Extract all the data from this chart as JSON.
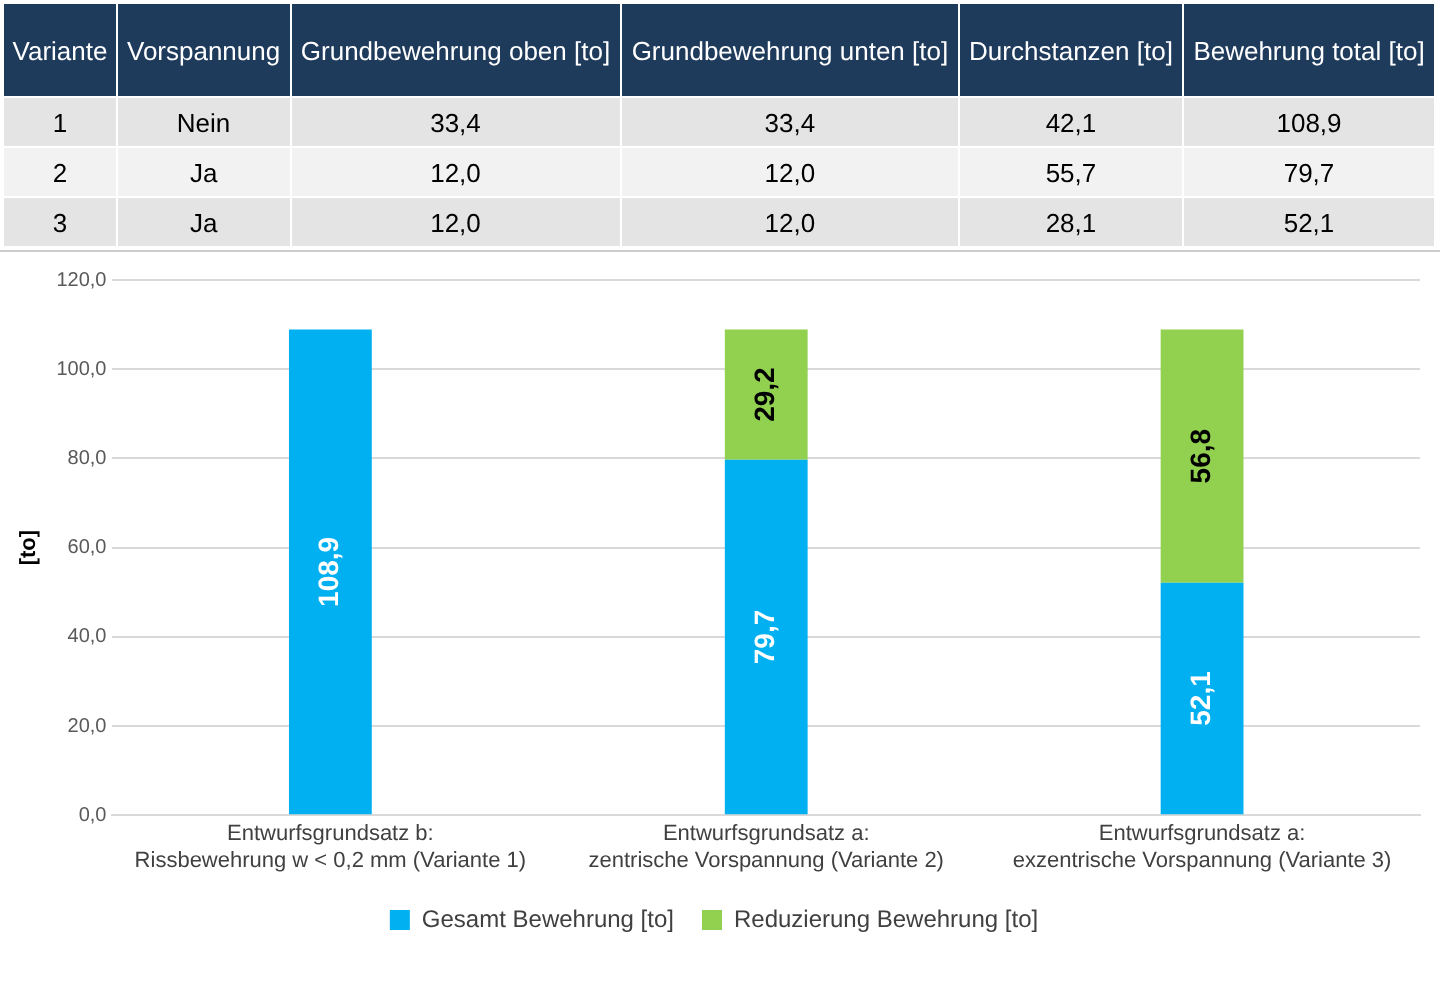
{
  "chart_data": [
    {
      "type": "other",
      "categories": [
        "Variante",
        "Vorspannung",
        "Grundbewehrung oben [to]",
        "Grundbewehrung unten [to]",
        "Durchstanzen [to]",
        "Bewehrung total [to]"
      ],
      "cell_labels": [
        [
          "1",
          "Nein",
          "33,4",
          "33,4",
          "42,1",
          "108,9"
        ],
        [
          "2",
          "Ja",
          "12,0",
          "12,0",
          "55,7",
          "79,7"
        ],
        [
          "3",
          "Ja",
          "12,0",
          "12,0",
          "28,1",
          "52,1"
        ]
      ]
    },
    {
      "type": "bar",
      "stacked": true,
      "ylabel": "[to]",
      "categories": [
        "Entwurfsgrundsatz b:\nRissbewehrung w < 0,2 mm (Variante 1)",
        "Entwurfsgrundsatz a:\nzentrische Vorspannung (Variante 2)",
        "Entwurfsgrundsatz a:\nexzentrische Vorspannung (Variante 3)"
      ],
      "series": [
        {
          "name": "Gesamt Bewehrung [to]",
          "color": "#00b0f0",
          "values": [
            108.9,
            79.7,
            52.1
          ],
          "value_labels": [
            "108,9",
            "79,7",
            "52,1"
          ]
        },
        {
          "name": "Reduzierung Bewehrung [to]",
          "color": "#92d050",
          "values": [
            null,
            29.2,
            56.8
          ],
          "value_labels": [
            null,
            "29,2",
            "56,8"
          ]
        }
      ],
      "ylim": [
        0,
        120
      ],
      "yticks": [
        {
          "value": 0,
          "label": "0,0"
        },
        {
          "value": 20,
          "label": "20,0"
        },
        {
          "value": 40,
          "label": "40,0"
        },
        {
          "value": 60,
          "label": "60,0"
        },
        {
          "value": 80,
          "label": "80,0"
        },
        {
          "value": 100,
          "label": "100,0"
        },
        {
          "value": 120,
          "label": "120,0"
        }
      ],
      "grid": "y",
      "legend": "bottom"
    }
  ]
}
